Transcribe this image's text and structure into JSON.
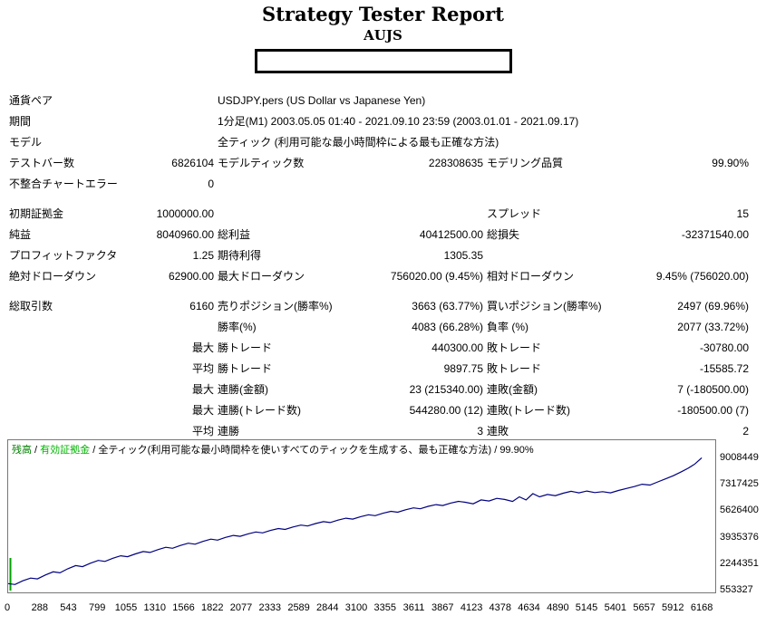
{
  "page": {
    "title": "Strategy Tester Report",
    "subtitle": "AUJS"
  },
  "table": {
    "rows": [
      {
        "gap": false,
        "span": true,
        "c": [
          "通貨ペア",
          "",
          "USDJPY.pers (US Dollar vs Japanese Yen)",
          "",
          "",
          ""
        ]
      },
      {
        "gap": false,
        "span": true,
        "c": [
          "期間",
          "",
          "1分足(M1) 2003.05.05 01:40 - 2021.09.10 23:59 (2003.01.01 - 2021.09.17)",
          "",
          "",
          ""
        ]
      },
      {
        "gap": false,
        "span": true,
        "c": [
          "モデル",
          "",
          "全ティック (利用可能な最小時間枠による最も正確な方法)",
          "",
          "",
          ""
        ]
      },
      {
        "gap": false,
        "span": false,
        "c": [
          "テストバー数",
          "6826104",
          "モデルティック数",
          "228308635",
          "モデリング品質",
          "99.90%"
        ]
      },
      {
        "gap": false,
        "span": false,
        "c": [
          "不整合チャートエラー",
          "0",
          "",
          "",
          "",
          ""
        ]
      },
      {
        "gap": true,
        "span": false,
        "c": [
          "初期証拠金",
          "1000000.00",
          "",
          "",
          "スプレッド",
          "15"
        ]
      },
      {
        "gap": false,
        "span": false,
        "c": [
          "純益",
          "8040960.00",
          "総利益",
          "40412500.00",
          "総損失",
          "-32371540.00"
        ]
      },
      {
        "gap": false,
        "span": false,
        "c": [
          "プロフィットファクタ",
          "1.25",
          "期待利得",
          "1305.35",
          "",
          ""
        ]
      },
      {
        "gap": false,
        "span": false,
        "c": [
          "絶対ドローダウン",
          "62900.00",
          "最大ドローダウン",
          "756020.00 (9.45%)",
          "相対ドローダウン",
          "9.45% (756020.00)"
        ]
      },
      {
        "gap": true,
        "span": false,
        "c": [
          "総取引数",
          "6160",
          "売りポジション(勝率%)",
          "3663 (63.77%)",
          "買いポジション(勝率%)",
          "2497 (69.96%)"
        ]
      },
      {
        "gap": false,
        "span": false,
        "c": [
          "",
          "",
          "勝率(%)",
          "4083 (66.28%)",
          "負率 (%)",
          "2077 (33.72%)"
        ]
      },
      {
        "gap": false,
        "span": false,
        "c": [
          "",
          "最大",
          "勝トレード",
          "440300.00",
          "敗トレード",
          "-30780.00"
        ]
      },
      {
        "gap": false,
        "span": false,
        "c": [
          "",
          "平均",
          "勝トレード",
          "9897.75",
          "敗トレード",
          "-15585.72"
        ]
      },
      {
        "gap": false,
        "span": false,
        "c": [
          "",
          "最大",
          "連勝(金額)",
          "23 (215340.00)",
          "連敗(金額)",
          "7 (-180500.00)"
        ]
      },
      {
        "gap": false,
        "span": false,
        "c": [
          "",
          "最大",
          "連勝(トレード数)",
          "544280.00 (12)",
          "連敗(トレード数)",
          "-180500.00 (7)"
        ]
      },
      {
        "gap": false,
        "span": false,
        "c": [
          "",
          "平均",
          "連勝",
          "3",
          "連敗",
          "2"
        ]
      }
    ]
  },
  "chart": {
    "legend": {
      "balance": "残高",
      "equity": "有効証拠金",
      "model": "全ティック(利用可能な最小時間枠を使いすべてのティックを生成する、最も正確な方法)",
      "quality": "99.90%",
      "sep": " / "
    },
    "colors": {
      "line": "#000080",
      "marker": "#00a000",
      "balance_green": "#008000",
      "equity_green": "#00b400",
      "border": "#777777"
    }
  },
  "chart_data": {
    "type": "line",
    "title": "",
    "xlabel": "",
    "ylabel": "",
    "grid": false,
    "legend_position": "top-left",
    "x_range": [
      0,
      6280
    ],
    "y_range": [
      553327,
      9008449
    ],
    "x_ticks": [
      0,
      288,
      543,
      799,
      1055,
      1310,
      1566,
      1822,
      2077,
      2333,
      2589,
      2844,
      3100,
      3355,
      3611,
      3867,
      4123,
      4378,
      4634,
      4890,
      5145,
      5401,
      5657,
      5912,
      6168
    ],
    "y_ticks": [
      9008449,
      7317425,
      5626400,
      3935376,
      2244351,
      553327
    ],
    "series": [
      {
        "name": "残高",
        "points": [
          [
            0,
            1000000
          ],
          [
            60,
            940000
          ],
          [
            130,
            1180000
          ],
          [
            200,
            1350000
          ],
          [
            260,
            1300000
          ],
          [
            330,
            1550000
          ],
          [
            400,
            1750000
          ],
          [
            460,
            1690000
          ],
          [
            530,
            1950000
          ],
          [
            600,
            2150000
          ],
          [
            660,
            2080000
          ],
          [
            730,
            2300000
          ],
          [
            800,
            2480000
          ],
          [
            860,
            2420000
          ],
          [
            930,
            2620000
          ],
          [
            1000,
            2780000
          ],
          [
            1060,
            2720000
          ],
          [
            1130,
            2900000
          ],
          [
            1200,
            3050000
          ],
          [
            1260,
            2990000
          ],
          [
            1330,
            3170000
          ],
          [
            1400,
            3320000
          ],
          [
            1460,
            3260000
          ],
          [
            1530,
            3440000
          ],
          [
            1600,
            3580000
          ],
          [
            1660,
            3520000
          ],
          [
            1730,
            3700000
          ],
          [
            1800,
            3840000
          ],
          [
            1860,
            3780000
          ],
          [
            1930,
            3950000
          ],
          [
            2000,
            4080000
          ],
          [
            2060,
            4020000
          ],
          [
            2130,
            4180000
          ],
          [
            2200,
            4300000
          ],
          [
            2260,
            4240000
          ],
          [
            2330,
            4400000
          ],
          [
            2400,
            4520000
          ],
          [
            2460,
            4460000
          ],
          [
            2530,
            4620000
          ],
          [
            2600,
            4740000
          ],
          [
            2660,
            4680000
          ],
          [
            2730,
            4840000
          ],
          [
            2800,
            4960000
          ],
          [
            2860,
            4900000
          ],
          [
            2930,
            5060000
          ],
          [
            3000,
            5180000
          ],
          [
            3060,
            5120000
          ],
          [
            3130,
            5280000
          ],
          [
            3200,
            5400000
          ],
          [
            3260,
            5340000
          ],
          [
            3330,
            5500000
          ],
          [
            3400,
            5620000
          ],
          [
            3460,
            5560000
          ],
          [
            3530,
            5720000
          ],
          [
            3600,
            5840000
          ],
          [
            3660,
            5780000
          ],
          [
            3730,
            5940000
          ],
          [
            3800,
            6050000
          ],
          [
            3860,
            5990000
          ],
          [
            3930,
            6150000
          ],
          [
            4000,
            6260000
          ],
          [
            4060,
            6200000
          ],
          [
            4130,
            6100000
          ],
          [
            4200,
            6350000
          ],
          [
            4270,
            6280000
          ],
          [
            4340,
            6450000
          ],
          [
            4410,
            6380000
          ],
          [
            4480,
            6250000
          ],
          [
            4540,
            6550000
          ],
          [
            4600,
            6350000
          ],
          [
            4660,
            6750000
          ],
          [
            4720,
            6550000
          ],
          [
            4790,
            6700000
          ],
          [
            4860,
            6620000
          ],
          [
            4930,
            6780000
          ],
          [
            5000,
            6900000
          ],
          [
            5070,
            6800000
          ],
          [
            5140,
            6920000
          ],
          [
            5210,
            6820000
          ],
          [
            5280,
            6880000
          ],
          [
            5350,
            6800000
          ],
          [
            5420,
            6950000
          ],
          [
            5490,
            7080000
          ],
          [
            5560,
            7200000
          ],
          [
            5630,
            7350000
          ],
          [
            5700,
            7300000
          ],
          [
            5770,
            7500000
          ],
          [
            5840,
            7700000
          ],
          [
            5910,
            7900000
          ],
          [
            5980,
            8150000
          ],
          [
            6040,
            8380000
          ],
          [
            6100,
            8650000
          ],
          [
            6160,
            9040960
          ]
        ]
      }
    ]
  }
}
